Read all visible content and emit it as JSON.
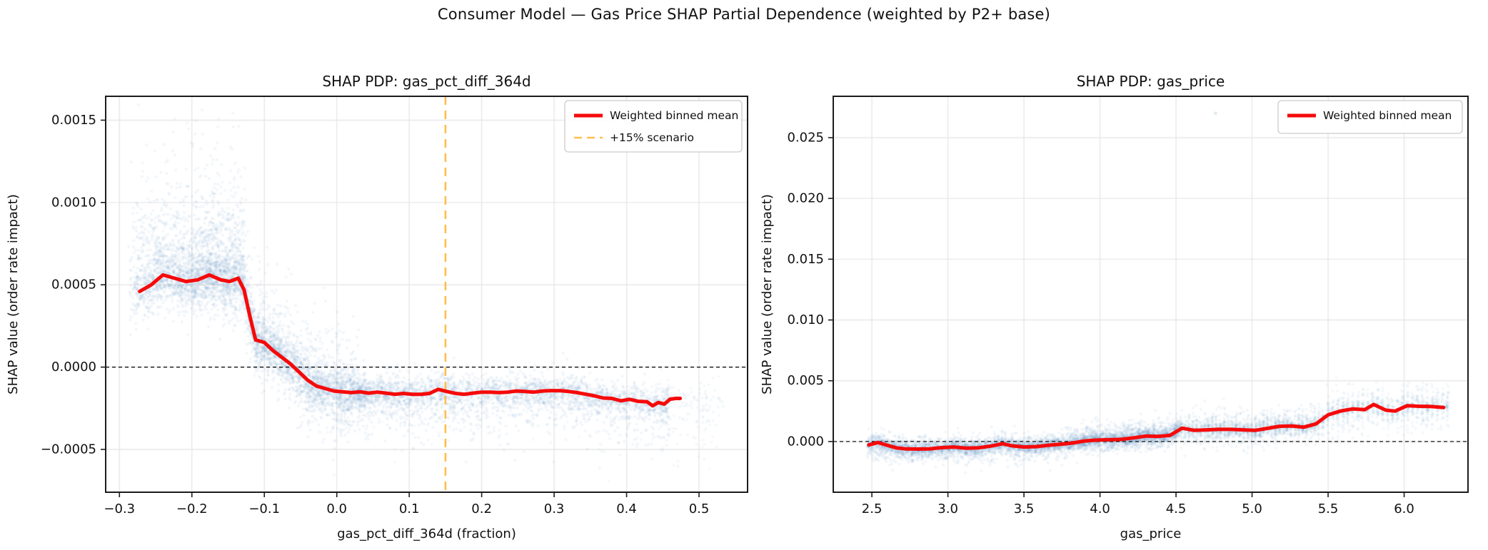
{
  "figure": {
    "title": "Consumer Model — Gas Price SHAP Partial Dependence (weighted by P2+ base)"
  },
  "colors": {
    "scatter": "#4682b4",
    "binned_mean": "#f50a0a",
    "scenario": "#ffbe4d",
    "grid": "#e7e7e7",
    "zero_line": "#000000",
    "spine": "#1c1c1c",
    "text": "#111111",
    "legend_border": "#cccccc",
    "legend_bg": "#ffffff"
  },
  "chart_data": [
    {
      "type": "scatter",
      "title": "SHAP PDP: gas_pct_diff_364d",
      "xlabel": "gas_pct_diff_364d (fraction)",
      "ylabel": "SHAP value (order rate impact)",
      "xlim": [
        -0.319,
        0.567
      ],
      "ylim": [
        -0.00076,
        0.001645
      ],
      "xticks": [
        -0.3,
        -0.2,
        -0.1,
        0.0,
        0.1,
        0.2,
        0.3,
        0.4,
        0.5
      ],
      "xtick_labels": [
        "−0.3",
        "−0.2",
        "−0.1",
        "0.0",
        "0.1",
        "0.2",
        "0.3",
        "0.4",
        "0.5"
      ],
      "yticks": [
        0.0015,
        0.001,
        0.0005,
        0.0,
        -0.0005
      ],
      "ytick_labels": [
        "0.0015",
        "0.0010",
        "0.0005",
        "0.0000",
        "−0.0005"
      ],
      "grid": true,
      "zero_line_y": 0,
      "scenario_line_x": 0.15,
      "legend": [
        {
          "label": "Weighted binned mean",
          "style": "solid",
          "color_key": "binned_mean"
        },
        {
          "label": "+15% scenario",
          "style": "dashed",
          "color_key": "scenario"
        }
      ],
      "legend_position": "upper right",
      "binned_mean": [
        [
          -0.272,
          0.00046
        ],
        [
          -0.256,
          0.0005
        ],
        [
          -0.24,
          0.00056
        ],
        [
          -0.224,
          0.00054
        ],
        [
          -0.208,
          0.00052
        ],
        [
          -0.192,
          0.00053
        ],
        [
          -0.176,
          0.00056
        ],
        [
          -0.16,
          0.00053
        ],
        [
          -0.148,
          0.00052
        ],
        [
          -0.136,
          0.00054
        ],
        [
          -0.128,
          0.00047
        ],
        [
          -0.12,
          0.00031
        ],
        [
          -0.112,
          0.000165
        ],
        [
          -0.1,
          0.00015
        ],
        [
          -0.088,
          0.0001
        ],
        [
          -0.076,
          6e-05
        ],
        [
          -0.064,
          2e-05
        ],
        [
          -0.052,
          -3e-05
        ],
        [
          -0.04,
          -8e-05
        ],
        [
          -0.028,
          -0.000115
        ],
        [
          -0.016,
          -0.00013
        ],
        [
          -0.004,
          -0.000145
        ],
        [
          0.008,
          -0.00015
        ],
        [
          0.02,
          -0.000155
        ],
        [
          0.032,
          -0.00015
        ],
        [
          0.044,
          -0.000158
        ],
        [
          0.056,
          -0.000152
        ],
        [
          0.068,
          -0.000158
        ],
        [
          0.08,
          -0.000165
        ],
        [
          0.092,
          -0.00016
        ],
        [
          0.104,
          -0.000165
        ],
        [
          0.116,
          -0.000165
        ],
        [
          0.128,
          -0.00016
        ],
        [
          0.14,
          -0.000135
        ],
        [
          0.152,
          -0.000148
        ],
        [
          0.164,
          -0.00016
        ],
        [
          0.176,
          -0.000165
        ],
        [
          0.188,
          -0.000158
        ],
        [
          0.2,
          -0.000152
        ],
        [
          0.212,
          -0.000152
        ],
        [
          0.224,
          -0.000155
        ],
        [
          0.236,
          -0.000152
        ],
        [
          0.248,
          -0.000145
        ],
        [
          0.26,
          -0.000148
        ],
        [
          0.272,
          -0.000152
        ],
        [
          0.284,
          -0.000145
        ],
        [
          0.296,
          -0.000143
        ],
        [
          0.308,
          -0.000143
        ],
        [
          0.32,
          -0.000148
        ],
        [
          0.332,
          -0.000155
        ],
        [
          0.344,
          -0.000165
        ],
        [
          0.356,
          -0.000175
        ],
        [
          0.368,
          -0.000188
        ],
        [
          0.38,
          -0.00019
        ],
        [
          0.392,
          -0.000205
        ],
        [
          0.404,
          -0.000196
        ],
        [
          0.416,
          -0.000208
        ],
        [
          0.428,
          -0.00021
        ],
        [
          0.436,
          -0.000235
        ],
        [
          0.444,
          -0.000215
        ],
        [
          0.452,
          -0.000225
        ],
        [
          0.46,
          -0.000195
        ],
        [
          0.468,
          -0.00019
        ],
        [
          0.474,
          -0.00019
        ]
      ],
      "scatter_profile": {
        "bands": [
          {
            "x0": -0.285,
            "x1": -0.127,
            "n": 2600,
            "xbias": 0.8,
            "cols": 46,
            "col_jitter": 0.0015,
            "spread": 7e-05,
            "center_offset": 0,
            "p_up": 0.42,
            "up_scale": 0.00022,
            "p_up2": 0.1,
            "up_scale2": 0.00045,
            "p_down": 0.22,
            "down_scale": 9e-05,
            "alpha": 0.07,
            "r": 2.1
          },
          {
            "x0": -0.127,
            "x1": 0.03,
            "n": 2300,
            "xbias": 1.0,
            "cols": 0,
            "col_jitter": 0,
            "spread": 6e-05,
            "center_offset": 0,
            "p_up": 0.22,
            "up_scale": 0.00013,
            "p_up2": 0.04,
            "up_scale2": 0.00025,
            "p_down": 0.26,
            "down_scale": 0.00012,
            "alpha": 0.07,
            "r": 2.1
          },
          {
            "x0": 0.03,
            "x1": 0.46,
            "n": 2900,
            "xbias": 1.25,
            "cols": 0,
            "col_jitter": 0,
            "spread": 4.8e-05,
            "center_offset": 0,
            "p_up": 0.1,
            "up_scale": 6e-05,
            "p_up2": 0,
            "up_scale2": 0,
            "p_down": 0.28,
            "down_scale": 0.00012,
            "alpha": 0.07,
            "r": 2.1
          },
          {
            "x0": 0.44,
            "x1": 0.535,
            "n": 130,
            "xbias": 1.0,
            "cols": 0,
            "col_jitter": 0,
            "spread": 8e-05,
            "center_offset": -2e-05,
            "p_up": 0.05,
            "up_scale": 5e-05,
            "p_up2": 0,
            "up_scale2": 0,
            "p_down": 0.3,
            "down_scale": 0.00014,
            "alpha": 0.06,
            "r": 2.1
          },
          {
            "x0": -0.05,
            "x1": 0.52,
            "n": 70,
            "xbias": 1.0,
            "cols": 0,
            "col_jitter": 0,
            "spread": 0.00018,
            "center_offset": -0.00012,
            "p_up": 0,
            "up_scale": 0,
            "p_up2": 0,
            "up_scale2": 0,
            "p_down": 0.5,
            "down_scale": 0.00012,
            "alpha": 0.05,
            "r": 2.0
          }
        ],
        "outliers": []
      }
    },
    {
      "type": "scatter",
      "title": "SHAP PDP: gas_price",
      "xlabel": "gas_price",
      "ylabel": "SHAP value (order rate impact)",
      "xlim": [
        2.246,
        6.42
      ],
      "ylim": [
        -0.00417,
        0.0284
      ],
      "xticks": [
        2.5,
        3.0,
        3.5,
        4.0,
        4.5,
        5.0,
        5.5,
        6.0
      ],
      "xtick_labels": [
        "2.5",
        "3.0",
        "3.5",
        "4.0",
        "4.5",
        "5.0",
        "5.5",
        "6.0"
      ],
      "yticks": [
        0.025,
        0.02,
        0.015,
        0.01,
        0.005,
        0.0
      ],
      "ytick_labels": [
        "0.025",
        "0.020",
        "0.015",
        "0.010",
        "0.005",
        "0.000"
      ],
      "grid": true,
      "zero_line_y": 0,
      "scenario_line_x": null,
      "legend": [
        {
          "label": "Weighted binned mean",
          "style": "solid",
          "color_key": "binned_mean"
        }
      ],
      "legend_position": "upper right",
      "binned_mean": [
        [
          2.48,
          -0.00028
        ],
        [
          2.54,
          -8e-05
        ],
        [
          2.6,
          -0.0003
        ],
        [
          2.66,
          -0.00052
        ],
        [
          2.72,
          -0.0006
        ],
        [
          2.8,
          -0.00062
        ],
        [
          2.88,
          -0.0006
        ],
        [
          2.96,
          -0.0005
        ],
        [
          3.04,
          -0.00045
        ],
        [
          3.12,
          -0.00055
        ],
        [
          3.2,
          -0.00052
        ],
        [
          3.28,
          -0.00038
        ],
        [
          3.36,
          -0.00018
        ],
        [
          3.42,
          -0.00035
        ],
        [
          3.5,
          -0.00045
        ],
        [
          3.58,
          -0.00042
        ],
        [
          3.66,
          -0.0003
        ],
        [
          3.74,
          -0.00022
        ],
        [
          3.82,
          -0.00012
        ],
        [
          3.9,
          5e-05
        ],
        [
          3.98,
          0.00012
        ],
        [
          4.06,
          0.00015
        ],
        [
          4.14,
          0.00018
        ],
        [
          4.22,
          0.0003
        ],
        [
          4.3,
          0.00045
        ],
        [
          4.38,
          0.00042
        ],
        [
          4.46,
          0.0005
        ],
        [
          4.54,
          0.0011
        ],
        [
          4.62,
          0.00092
        ],
        [
          4.7,
          0.00096
        ],
        [
          4.78,
          0.001
        ],
        [
          4.86,
          0.001
        ],
        [
          4.94,
          0.00096
        ],
        [
          5.02,
          0.00092
        ],
        [
          5.1,
          0.00108
        ],
        [
          5.18,
          0.00125
        ],
        [
          5.26,
          0.00128
        ],
        [
          5.34,
          0.00118
        ],
        [
          5.42,
          0.00145
        ],
        [
          5.5,
          0.0022
        ],
        [
          5.58,
          0.0025
        ],
        [
          5.66,
          0.00268
        ],
        [
          5.74,
          0.00262
        ],
        [
          5.8,
          0.00305
        ],
        [
          5.88,
          0.00258
        ],
        [
          5.94,
          0.0025
        ],
        [
          6.02,
          0.00295
        ],
        [
          6.1,
          0.0029
        ],
        [
          6.18,
          0.00288
        ],
        [
          6.26,
          0.0028
        ]
      ],
      "scatter_profile": {
        "bands": [
          {
            "x0": 2.47,
            "x1": 3.78,
            "n": 2700,
            "xbias": 1.0,
            "cols": 60,
            "col_jitter": 0.006,
            "spread": 0.00028,
            "center_offset": 0,
            "p_up": 0.2,
            "up_scale": 0.00045,
            "p_up2": 0,
            "up_scale2": 0,
            "p_down": 0.26,
            "down_scale": 0.00055,
            "alpha": 0.07,
            "r": 2.1
          },
          {
            "x0": 3.78,
            "x1": 4.52,
            "n": 1900,
            "xbias": 1.0,
            "cols": 42,
            "col_jitter": 0.005,
            "spread": 0.0003,
            "center_offset": 0,
            "p_up": 0.28,
            "up_scale": 0.00055,
            "p_up2": 0,
            "up_scale2": 0,
            "p_down": 0.22,
            "down_scale": 0.0004,
            "alpha": 0.07,
            "r": 2.1
          },
          {
            "x0": 4.52,
            "x1": 5.45,
            "n": 1500,
            "xbias": 1.0,
            "cols": 36,
            "col_jitter": 0.005,
            "spread": 0.00032,
            "center_offset": 0,
            "p_up": 0.3,
            "up_scale": 0.0007,
            "p_up2": 0,
            "up_scale2": 0,
            "p_down": 0.28,
            "down_scale": 0.0006,
            "alpha": 0.065,
            "r": 2.1
          },
          {
            "x0": 5.45,
            "x1": 6.3,
            "n": 950,
            "xbias": 1.0,
            "cols": 26,
            "col_jitter": 0.005,
            "spread": 0.0004,
            "center_offset": 0,
            "p_up": 0.33,
            "up_scale": 0.00085,
            "p_up2": 0,
            "up_scale2": 0,
            "p_down": 0.33,
            "down_scale": 0.0009,
            "alpha": 0.06,
            "r": 2.1
          }
        ],
        "outliers": [
          [
            4.76,
            0.027
          ]
        ]
      }
    }
  ]
}
